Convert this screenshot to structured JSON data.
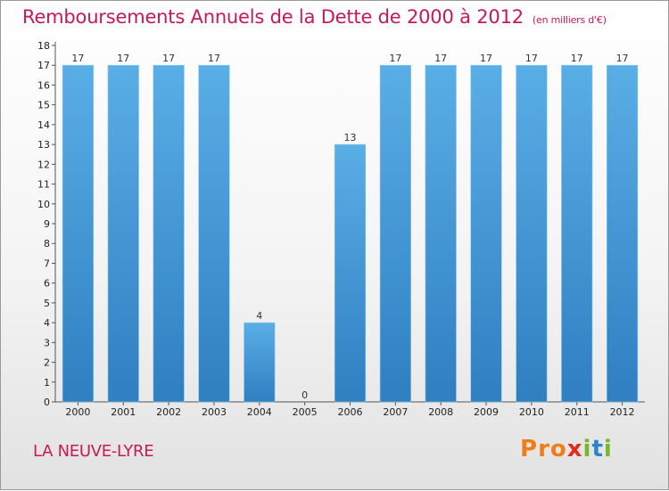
{
  "header": {
    "title": "Remboursements Annuels de la Dette de 2000 à 2012",
    "unit": "(en milliers d'€)"
  },
  "footer": {
    "commune": "LA NEUVE-LYRE",
    "brand_letters": [
      "P",
      "r",
      "o",
      "x",
      "i",
      "t",
      "i"
    ]
  },
  "colors": {
    "title": "#c8185a",
    "bar_top": "#5aaee6",
    "bar_bottom": "#2f7fc1",
    "brand": [
      "#f07c1a",
      "#f07c1a",
      "#f07c1a",
      "#e32b1c",
      "#7ab629",
      "#2a86c8",
      "#7ab629"
    ]
  },
  "chart_data": {
    "type": "bar",
    "categories": [
      "2000",
      "2001",
      "2002",
      "2003",
      "2004",
      "2005",
      "2006",
      "2007",
      "2008",
      "2009",
      "2010",
      "2011",
      "2012"
    ],
    "values": [
      17,
      17,
      17,
      17,
      4,
      0,
      13,
      17,
      17,
      17,
      17,
      17,
      17
    ],
    "data_labels": [
      "17",
      "17",
      "17",
      "17",
      "4",
      "0",
      "13",
      "17",
      "17",
      "17",
      "17",
      "17",
      "17"
    ],
    "ylim": [
      0,
      18
    ],
    "yticks": [
      0,
      1,
      2,
      3,
      4,
      5,
      6,
      7,
      8,
      9,
      10,
      11,
      12,
      13,
      14,
      15,
      16,
      17,
      18
    ],
    "grid": false
  }
}
